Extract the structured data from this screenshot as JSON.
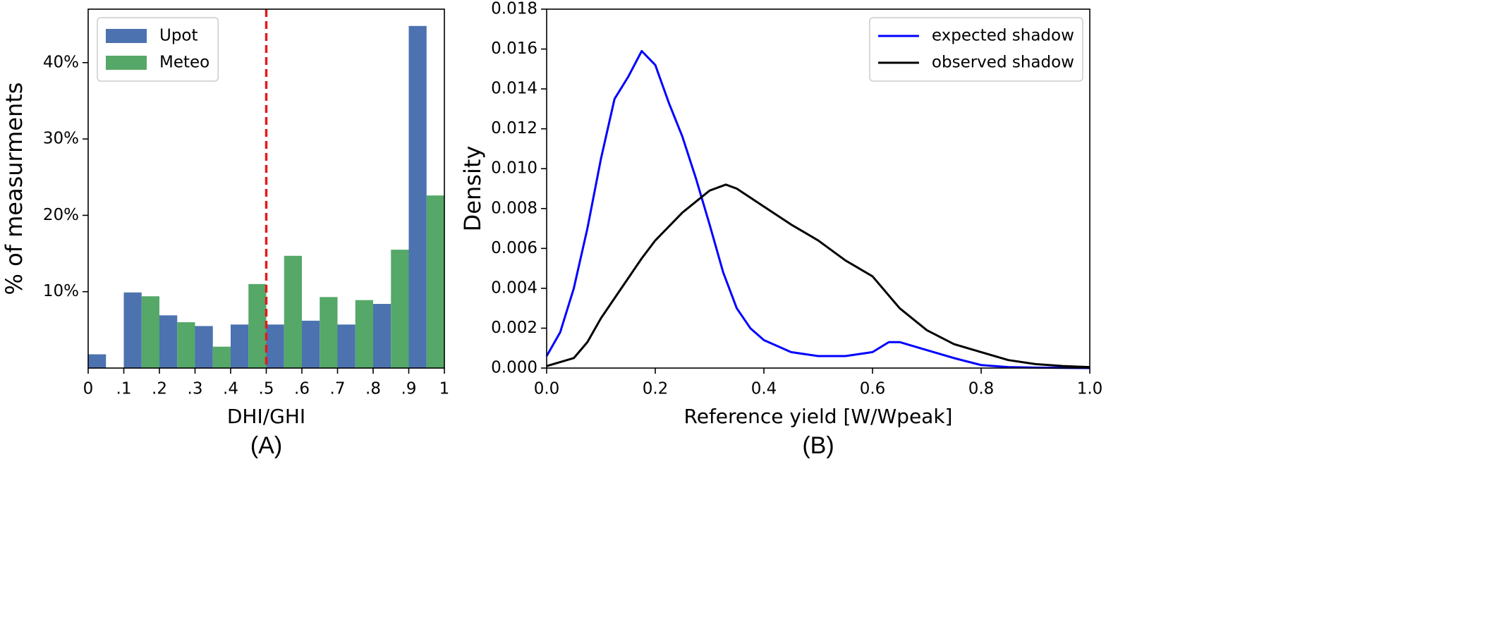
{
  "chart_data": [
    {
      "type": "histogram",
      "xlabel": "DHI/GHI",
      "ylabel": "% of measurments",
      "caption": "(A)",
      "bins": [
        0,
        0.1,
        0.2,
        0.3,
        0.4,
        0.5,
        0.6,
        0.7,
        0.8,
        0.9,
        1
      ],
      "series": [
        {
          "name": "Upot",
          "color": "#4c72b0",
          "values": [
            1.8,
            9.9,
            6.9,
            5.5,
            5.7,
            5.7,
            6.2,
            5.7,
            8.4,
            44.8
          ]
        },
        {
          "name": "Meteo",
          "color": "#55a868",
          "values": [
            0,
            9.4,
            6.0,
            2.8,
            11.0,
            14.7,
            9.3,
            8.9,
            15.5,
            22.6
          ]
        }
      ],
      "xlim": [
        0,
        1
      ],
      "xticks": [
        0,
        {
          "value": 0.1,
          "label": ".1"
        },
        {
          "value": 0.2,
          "label": ".2"
        },
        {
          "value": 0.3,
          "label": ".3"
        },
        {
          "value": 0.4,
          "label": ".4"
        },
        {
          "value": 0.5,
          "label": ".5"
        },
        {
          "value": 0.6,
          "label": ".6"
        },
        {
          "value": 0.7,
          "label": ".7"
        },
        {
          "value": 0.8,
          "label": ".8"
        },
        {
          "value": 0.9,
          "label": ".9"
        },
        1
      ],
      "ylim": [
        0,
        47
      ],
      "yticks": [
        {
          "value": 10,
          "label": "10%"
        },
        {
          "value": 20,
          "label": "20%"
        },
        {
          "value": 30,
          "label": "30%"
        },
        {
          "value": 40,
          "label": "40%"
        }
      ],
      "vline": 0.5,
      "vline_color": "#e41a1c",
      "legend": "upper left"
    },
    {
      "type": "line",
      "xlabel": "Reference yield [W/Wpeak]",
      "ylabel": "Density",
      "caption": "(B)",
      "series": [
        {
          "name": "expected shadow",
          "color": "#0000ff",
          "x": [
            0,
            0.025,
            0.05,
            0.075,
            0.1,
            0.125,
            0.15,
            0.175,
            0.2,
            0.225,
            0.25,
            0.275,
            0.3,
            0.325,
            0.35,
            0.375,
            0.4,
            0.45,
            0.5,
            0.55,
            0.6,
            0.63,
            0.65,
            0.7,
            0.75,
            0.8,
            0.85,
            0.9,
            1.0
          ],
          "values": [
            0.0006,
            0.0018,
            0.004,
            0.007,
            0.0105,
            0.0135,
            0.0146,
            0.0159,
            0.0152,
            0.0133,
            0.0116,
            0.0095,
            0.0072,
            0.0048,
            0.003,
            0.002,
            0.0014,
            0.0008,
            0.0006,
            0.0006,
            0.0008,
            0.0013,
            0.0013,
            0.0009,
            0.0005,
            0.00015,
            5e-05,
            2e-05,
            0
          ]
        },
        {
          "name": "observed shadow",
          "color": "#000000",
          "x": [
            0,
            0.05,
            0.075,
            0.1,
            0.125,
            0.15,
            0.175,
            0.2,
            0.25,
            0.3,
            0.33,
            0.35,
            0.4,
            0.45,
            0.5,
            0.55,
            0.6,
            0.65,
            0.7,
            0.75,
            0.8,
            0.85,
            0.9,
            0.95,
            1.0
          ],
          "values": [
            0.0001,
            0.0005,
            0.0013,
            0.0025,
            0.0035,
            0.0045,
            0.0055,
            0.0064,
            0.0078,
            0.0089,
            0.0092,
            0.009,
            0.0081,
            0.0072,
            0.0064,
            0.0054,
            0.0046,
            0.003,
            0.0019,
            0.0012,
            0.0008,
            0.0004,
            0.0002,
            0.0001,
            5e-05
          ]
        }
      ],
      "xlim": [
        0,
        1
      ],
      "xticks": [
        {
          "value": 0,
          "label": "0.0"
        },
        0.2,
        0.4,
        0.6,
        0.8,
        {
          "value": 1,
          "label": "1.0"
        }
      ],
      "ylim": [
        0,
        0.018
      ],
      "yticks": [
        {
          "value": 0,
          "label": "0.000"
        },
        0.002,
        0.004,
        0.006,
        0.008,
        {
          "value": 0.01,
          "label": "0.010"
        },
        0.012,
        0.014,
        0.016,
        0.018
      ],
      "legend": "upper right"
    }
  ]
}
